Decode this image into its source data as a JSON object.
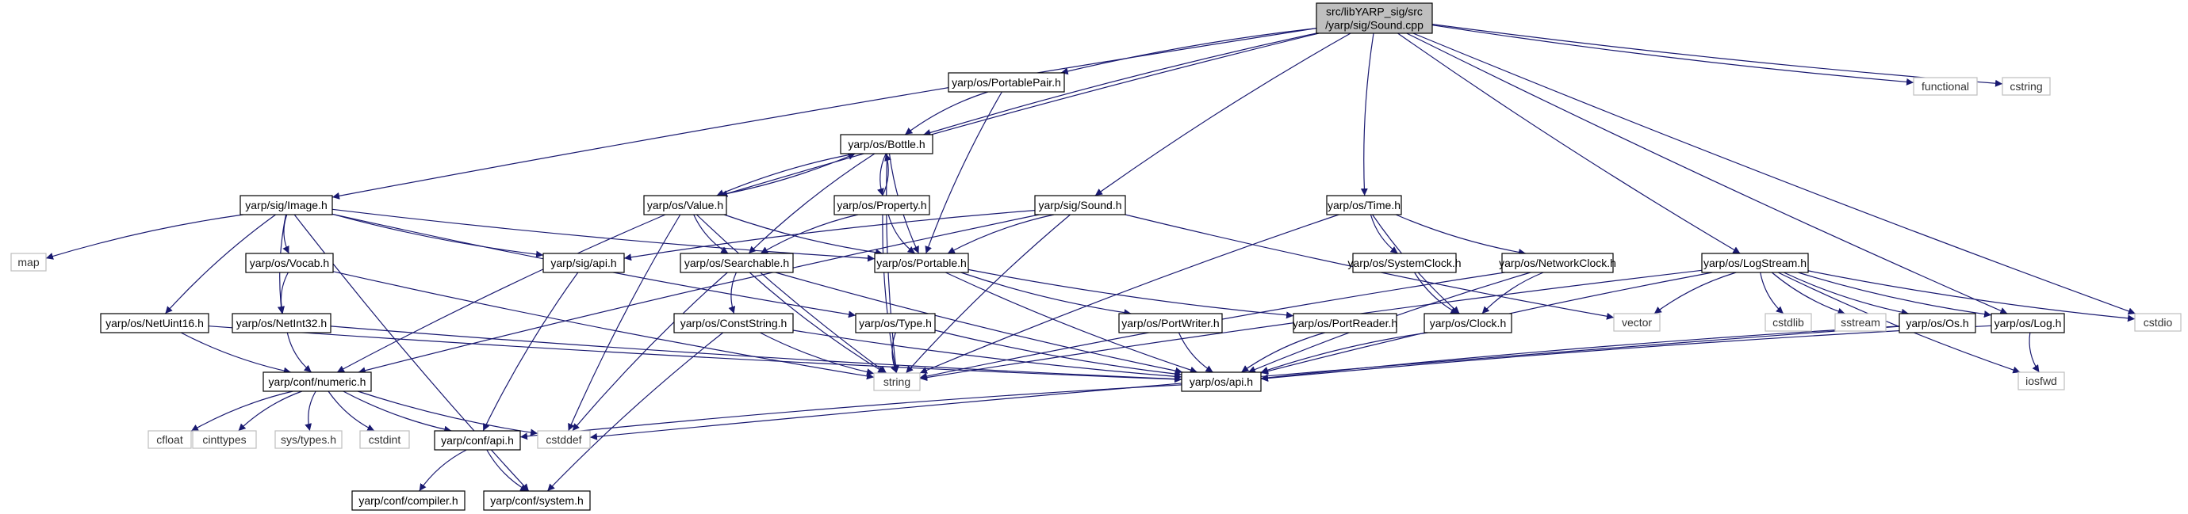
{
  "colors": {
    "edge": "#191970",
    "root_fill": "#bfbfbf",
    "node_border": "#000000",
    "system_border": "#bfbfbf"
  },
  "nodes": [
    {
      "id": "root",
      "kind": "root",
      "lines": [
        "src/libYARP_sig/src",
        "/yarp/sig/Sound.cpp"
      ]
    },
    {
      "id": "portablepair",
      "kind": "project",
      "lines": [
        "yarp/os/PortablePair.h"
      ]
    },
    {
      "id": "functional",
      "kind": "system",
      "lines": [
        "functional"
      ]
    },
    {
      "id": "cstring",
      "kind": "system",
      "lines": [
        "cstring"
      ]
    },
    {
      "id": "bottle",
      "kind": "project",
      "lines": [
        "yarp/os/Bottle.h"
      ]
    },
    {
      "id": "image",
      "kind": "project",
      "lines": [
        "yarp/sig/Image.h"
      ]
    },
    {
      "id": "value",
      "kind": "project",
      "lines": [
        "yarp/os/Value.h"
      ]
    },
    {
      "id": "property",
      "kind": "project",
      "lines": [
        "yarp/os/Property.h"
      ]
    },
    {
      "id": "sound",
      "kind": "project",
      "lines": [
        "yarp/sig/Sound.h"
      ]
    },
    {
      "id": "time",
      "kind": "project",
      "lines": [
        "yarp/os/Time.h"
      ]
    },
    {
      "id": "map",
      "kind": "system",
      "lines": [
        "map"
      ]
    },
    {
      "id": "vocab",
      "kind": "project",
      "lines": [
        "yarp/os/Vocab.h"
      ]
    },
    {
      "id": "sigapi",
      "kind": "project",
      "lines": [
        "yarp/sig/api.h"
      ]
    },
    {
      "id": "searchable",
      "kind": "project",
      "lines": [
        "yarp/os/Searchable.h"
      ]
    },
    {
      "id": "portable",
      "kind": "project",
      "lines": [
        "yarp/os/Portable.h"
      ]
    },
    {
      "id": "systemclock",
      "kind": "project",
      "lines": [
        "yarp/os/SystemClock.h"
      ]
    },
    {
      "id": "networkclock",
      "kind": "project",
      "lines": [
        "yarp/os/NetworkClock.h"
      ]
    },
    {
      "id": "logstream",
      "kind": "project",
      "lines": [
        "yarp/os/LogStream.h"
      ]
    },
    {
      "id": "netuint16",
      "kind": "project",
      "lines": [
        "yarp/os/NetUint16.h"
      ]
    },
    {
      "id": "netint32",
      "kind": "project",
      "lines": [
        "yarp/os/NetInt32.h"
      ]
    },
    {
      "id": "conststring",
      "kind": "project",
      "lines": [
        "yarp/os/ConstString.h"
      ]
    },
    {
      "id": "type",
      "kind": "project",
      "lines": [
        "yarp/os/Type.h"
      ]
    },
    {
      "id": "portwriter",
      "kind": "project",
      "lines": [
        "yarp/os/PortWriter.h"
      ]
    },
    {
      "id": "portreader",
      "kind": "project",
      "lines": [
        "yarp/os/PortReader.h"
      ]
    },
    {
      "id": "clock",
      "kind": "project",
      "lines": [
        "yarp/os/Clock.h"
      ]
    },
    {
      "id": "vector",
      "kind": "system",
      "lines": [
        "vector"
      ]
    },
    {
      "id": "cstdlib",
      "kind": "system",
      "lines": [
        "cstdlib"
      ]
    },
    {
      "id": "sstream",
      "kind": "system",
      "lines": [
        "sstream"
      ]
    },
    {
      "id": "os",
      "kind": "project",
      "lines": [
        "yarp/os/Os.h"
      ]
    },
    {
      "id": "log",
      "kind": "project",
      "lines": [
        "yarp/os/Log.h"
      ]
    },
    {
      "id": "cstdio",
      "kind": "system",
      "lines": [
        "cstdio"
      ]
    },
    {
      "id": "numeric",
      "kind": "project",
      "lines": [
        "yarp/conf/numeric.h"
      ]
    },
    {
      "id": "string",
      "kind": "system",
      "lines": [
        "string"
      ]
    },
    {
      "id": "osapi",
      "kind": "project",
      "lines": [
        "yarp/os/api.h"
      ]
    },
    {
      "id": "iosfwd",
      "kind": "system",
      "lines": [
        "iosfwd"
      ]
    },
    {
      "id": "cfloat",
      "kind": "system",
      "lines": [
        "cfloat"
      ]
    },
    {
      "id": "cinttypes",
      "kind": "system",
      "lines": [
        "cinttypes"
      ]
    },
    {
      "id": "systypes",
      "kind": "system",
      "lines": [
        "sys/types.h"
      ]
    },
    {
      "id": "cstdint",
      "kind": "system",
      "lines": [
        "cstdint"
      ]
    },
    {
      "id": "confapi",
      "kind": "project",
      "lines": [
        "yarp/conf/api.h"
      ]
    },
    {
      "id": "cstddef",
      "kind": "system",
      "lines": [
        "cstddef"
      ]
    },
    {
      "id": "compiler",
      "kind": "project",
      "lines": [
        "yarp/conf/compiler.h"
      ]
    },
    {
      "id": "system",
      "kind": "project",
      "lines": [
        "yarp/conf/system.h"
      ]
    }
  ],
  "edges": [
    [
      "root",
      "portablepair"
    ],
    [
      "root",
      "functional"
    ],
    [
      "root",
      "cstring"
    ],
    [
      "root",
      "bottle"
    ],
    [
      "root",
      "image"
    ],
    [
      "root",
      "value"
    ],
    [
      "root",
      "sound"
    ],
    [
      "root",
      "time"
    ],
    [
      "root",
      "logstream"
    ],
    [
      "root",
      "cstdio"
    ],
    [
      "root",
      "log"
    ],
    [
      "portablepair",
      "bottle"
    ],
    [
      "portablepair",
      "portable"
    ],
    [
      "bottle",
      "value"
    ],
    [
      "bottle",
      "property"
    ],
    [
      "bottle",
      "searchable"
    ],
    [
      "bottle",
      "portable"
    ],
    [
      "bottle",
      "string"
    ],
    [
      "value",
      "bottle"
    ],
    [
      "value",
      "searchable"
    ],
    [
      "value",
      "portable"
    ],
    [
      "value",
      "numeric"
    ],
    [
      "value",
      "string"
    ],
    [
      "value",
      "cstddef"
    ],
    [
      "property",
      "bottle"
    ],
    [
      "property",
      "searchable"
    ],
    [
      "property",
      "portable"
    ],
    [
      "property",
      "string"
    ],
    [
      "image",
      "map"
    ],
    [
      "image",
      "vocab"
    ],
    [
      "image",
      "sigapi"
    ],
    [
      "image",
      "portable"
    ],
    [
      "image",
      "type"
    ],
    [
      "image",
      "netuint16"
    ],
    [
      "image",
      "netint32"
    ],
    [
      "image",
      "system"
    ],
    [
      "vocab",
      "netint32"
    ],
    [
      "vocab",
      "string"
    ],
    [
      "netuint16",
      "numeric"
    ],
    [
      "netuint16",
      "osapi"
    ],
    [
      "netint32",
      "numeric"
    ],
    [
      "netint32",
      "osapi"
    ],
    [
      "sigapi",
      "confapi"
    ],
    [
      "searchable",
      "conststring"
    ],
    [
      "searchable",
      "string"
    ],
    [
      "searchable",
      "osapi"
    ],
    [
      "searchable",
      "cstddef"
    ],
    [
      "portable",
      "portwriter"
    ],
    [
      "portable",
      "portreader"
    ],
    [
      "portable",
      "osapi"
    ],
    [
      "conststring",
      "string"
    ],
    [
      "conststring",
      "osapi"
    ],
    [
      "conststring",
      "system"
    ],
    [
      "type",
      "string"
    ],
    [
      "type",
      "osapi"
    ],
    [
      "portwriter",
      "osapi"
    ],
    [
      "portreader",
      "osapi"
    ],
    [
      "sound",
      "sigapi"
    ],
    [
      "sound",
      "portable"
    ],
    [
      "sound",
      "numeric"
    ],
    [
      "sound",
      "string"
    ],
    [
      "sound",
      "vector"
    ],
    [
      "time",
      "systemclock"
    ],
    [
      "time",
      "networkclock"
    ],
    [
      "time",
      "clock"
    ],
    [
      "time",
      "string"
    ],
    [
      "systemclock",
      "clock"
    ],
    [
      "networkclock",
      "clock"
    ],
    [
      "networkclock",
      "osapi"
    ],
    [
      "networkclock",
      "string"
    ],
    [
      "clock",
      "osapi"
    ],
    [
      "logstream",
      "vector"
    ],
    [
      "logstream",
      "cstdlib"
    ],
    [
      "logstream",
      "sstream"
    ],
    [
      "logstream",
      "os"
    ],
    [
      "logstream",
      "log"
    ],
    [
      "logstream",
      "cstdio"
    ],
    [
      "logstream",
      "iosfwd"
    ],
    [
      "logstream",
      "string"
    ],
    [
      "logstream",
      "osapi"
    ],
    [
      "os",
      "osapi"
    ],
    [
      "os",
      "cstddef"
    ],
    [
      "log",
      "osapi"
    ],
    [
      "log",
      "iosfwd"
    ],
    [
      "osapi",
      "confapi"
    ],
    [
      "numeric",
      "cfloat"
    ],
    [
      "numeric",
      "cinttypes"
    ],
    [
      "numeric",
      "systypes"
    ],
    [
      "numeric",
      "cstdint"
    ],
    [
      "numeric",
      "confapi"
    ],
    [
      "numeric",
      "cstddef"
    ],
    [
      "confapi",
      "compiler"
    ],
    [
      "confapi",
      "system"
    ]
  ]
}
